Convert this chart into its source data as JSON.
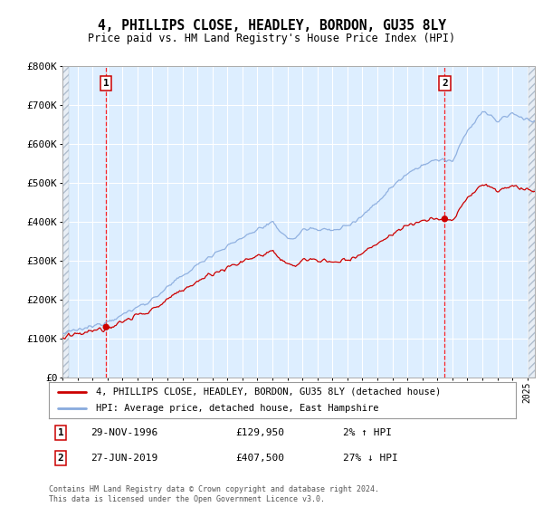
{
  "title1": "4, PHILLIPS CLOSE, HEADLEY, BORDON, GU35 8LY",
  "title2": "Price paid vs. HM Land Registry's House Price Index (HPI)",
  "ylim": [
    0,
    800000
  ],
  "yticks": [
    0,
    100000,
    200000,
    300000,
    400000,
    500000,
    600000,
    700000,
    800000
  ],
  "ytick_labels": [
    "£0",
    "£100K",
    "£200K",
    "£300K",
    "£400K",
    "£500K",
    "£600K",
    "£700K",
    "£800K"
  ],
  "hpi_color": "#88aadd",
  "price_color": "#cc0000",
  "marker_color": "#cc0000",
  "background_color": "#ddeeff",
  "legend_label1": "4, PHILLIPS CLOSE, HEADLEY, BORDON, GU35 8LY (detached house)",
  "legend_label2": "HPI: Average price, detached house, East Hampshire",
  "sale1_date": "29-NOV-1996",
  "sale1_price": 129950,
  "sale1_hpi_pct": "2% ↑ HPI",
  "sale2_date": "27-JUN-2019",
  "sale2_price": 407500,
  "sale2_hpi_pct": "27% ↓ HPI",
  "footer": "Contains HM Land Registry data © Crown copyright and database right 2024.\nThis data is licensed under the Open Government Licence v3.0.",
  "sale1_year": 1996.91,
  "sale2_year": 2019.49,
  "xmin": 1994,
  "xmax": 2025.5
}
